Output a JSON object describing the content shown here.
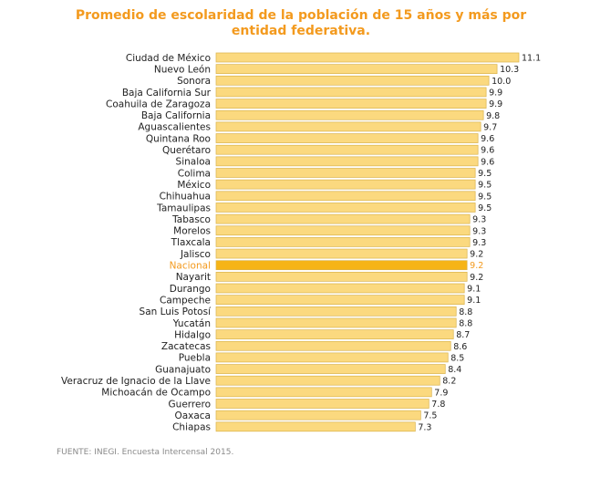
{
  "chart_data": {
    "type": "bar",
    "orientation": "horizontal",
    "title": "Promedio de escolaridad de la población de 15 años y más por entidad federativa.",
    "source": "FUENTE: INEGI. Encuesta Intercensal 2015.",
    "highlight_category": "Nacional",
    "colors": {
      "bar_fill": "#fbd97f",
      "bar_stroke": "#d9b24c",
      "highlight_fill": "#f6b416",
      "highlight_text": "#f39a1e",
      "title": "#f39a1e"
    },
    "xlim": [
      0,
      11.1
    ],
    "grid": false,
    "categories": [
      "Ciudad de México",
      "Nuevo León",
      "Sonora",
      "Baja California Sur",
      "Coahuila de Zaragoza",
      "Baja California",
      "Aguascalientes",
      "Quintana Roo",
      "Querétaro",
      "Sinaloa",
      "Colima",
      "México",
      "Chihuahua",
      "Tamaulipas",
      "Tabasco",
      "Morelos",
      "Tlaxcala",
      "Jalisco",
      "Nacional",
      "Nayarit",
      "Durango",
      "Campeche",
      "San Luis Potosí",
      "Yucatán",
      "Hidalgo",
      "Zacatecas",
      "Puebla",
      "Guanajuato",
      "Veracruz de Ignacio de la Llave",
      "Michoacán de Ocampo",
      "Guerrero",
      "Oaxaca",
      "Chiapas"
    ],
    "values": [
      11.1,
      10.3,
      10.0,
      9.9,
      9.9,
      9.8,
      9.7,
      9.6,
      9.6,
      9.6,
      9.5,
      9.5,
      9.5,
      9.5,
      9.3,
      9.3,
      9.3,
      9.2,
      9.2,
      9.2,
      9.1,
      9.1,
      8.8,
      8.8,
      8.7,
      8.6,
      8.5,
      8.4,
      8.2,
      7.9,
      7.8,
      7.5,
      7.3
    ],
    "value_labels": [
      "11.1",
      "10.3",
      "10.0",
      "9.9",
      "9.9",
      "9.8",
      "9.7",
      "9.6",
      "9.6",
      "9.6",
      "9.5",
      "9.5",
      "9.5",
      "9.5",
      "9.3",
      "9.3",
      "9.3",
      "9.2",
      "9.2",
      "9.2",
      "9.1",
      "9.1",
      "8.8",
      "8.8",
      "8.7",
      "8.6",
      "8.5",
      "8.4",
      "8.2",
      "7.9",
      "7.8",
      "7.5",
      "7.3"
    ]
  }
}
